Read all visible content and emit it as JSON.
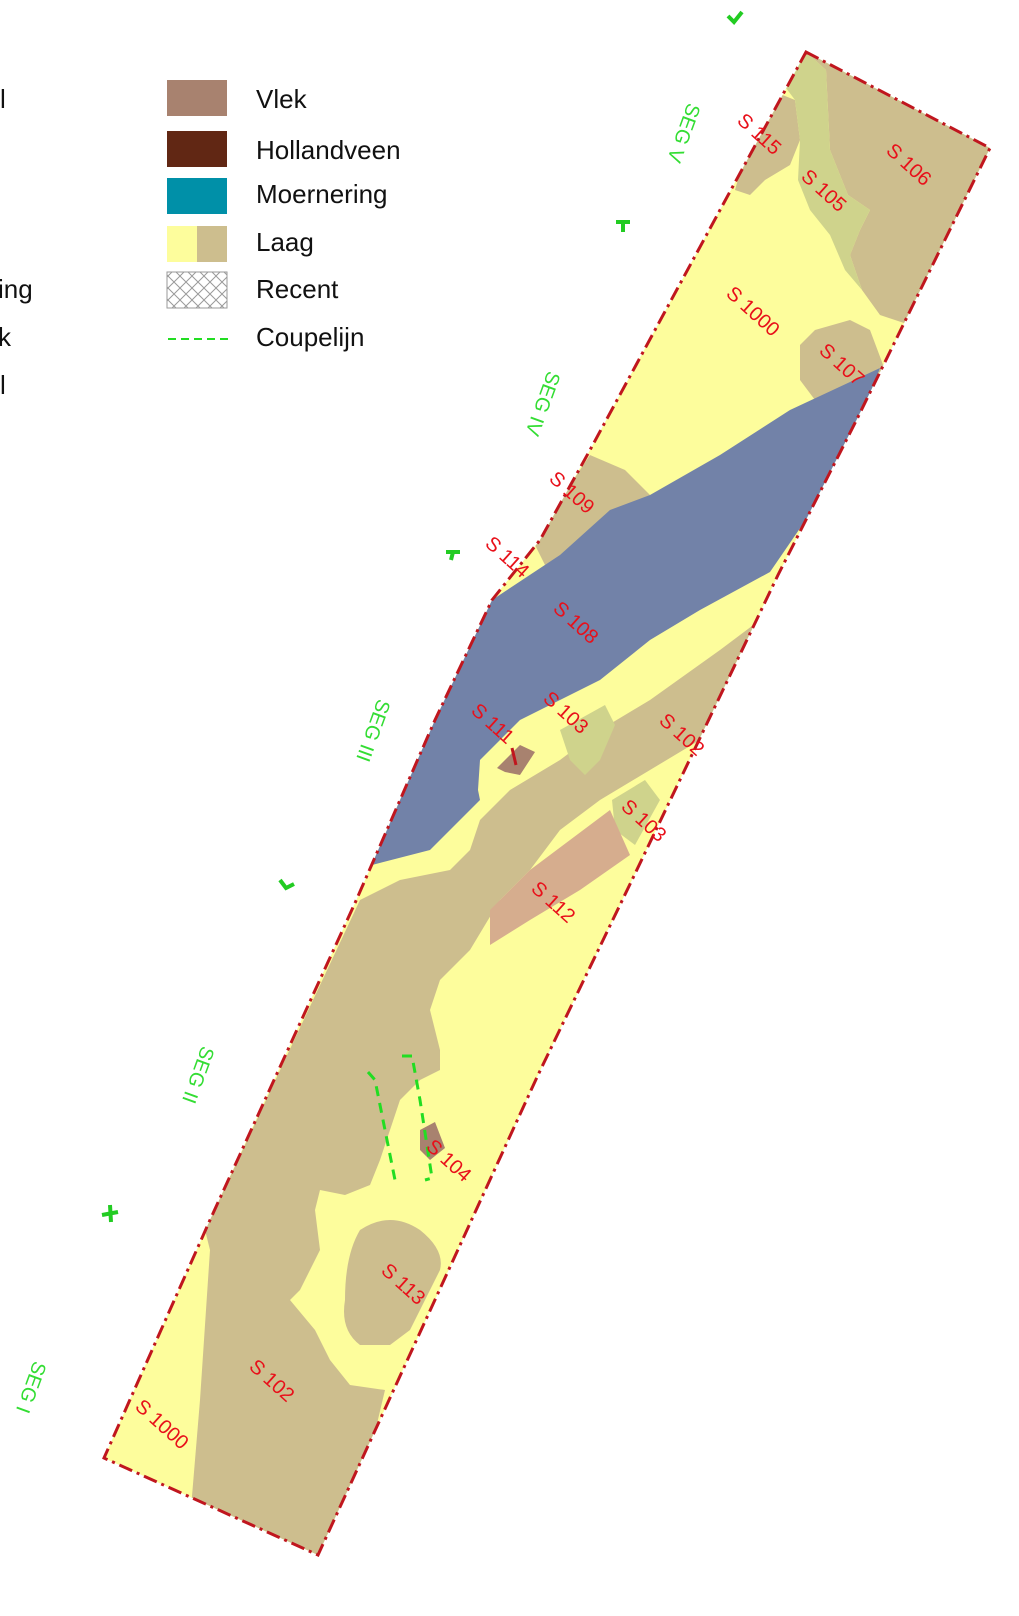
{
  "legend": {
    "items": [
      {
        "label": "Vlek",
        "color": "#a8826f",
        "type": "swatch"
      },
      {
        "label": "Hollandveen",
        "color": "#612714",
        "type": "swatch"
      },
      {
        "label": "Moernering",
        "color": "#0090a8",
        "type": "swatch"
      },
      {
        "label": "Laag",
        "colors": [
          "#fdfd9c",
          "#cdbe8e"
        ],
        "type": "dual-swatch"
      },
      {
        "label": "Recent",
        "type": "hatch"
      },
      {
        "label": "Coupelijn",
        "color": "#22dd22",
        "type": "dashed-line"
      }
    ],
    "truncated_left": [
      "l",
      "ing",
      "k",
      "l"
    ]
  },
  "colors": {
    "laag_light": "#fdfd9c",
    "laag_dark": "#cdbe8e",
    "green_layer": "#cfd38c",
    "blue_layer": "#7282a8",
    "pink_layer": "#d6ad8e",
    "vlek": "#a8826f",
    "boundary": "#c0161e",
    "label_red": "#e8101a",
    "segment_green": "#33dd33"
  },
  "zone_labels": [
    "S 115",
    "S 106",
    "S 105",
    "S 1000",
    "S 107",
    "S 109",
    "S 114",
    "S 108",
    "S 111",
    "S 103",
    "S 102",
    "S 103",
    "S 112",
    "S 104",
    "S 113",
    "S 102",
    "S 1000"
  ],
  "segments": [
    "SEG V",
    "SEG IV",
    "SEG III",
    "SEG II",
    "SEG I"
  ]
}
